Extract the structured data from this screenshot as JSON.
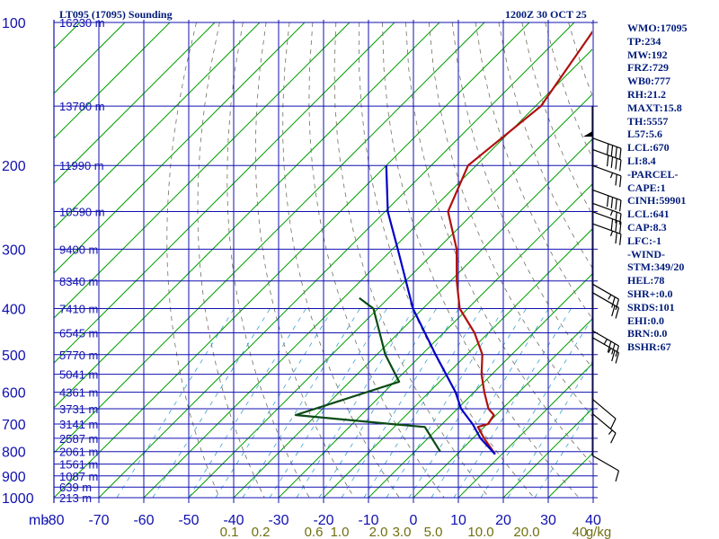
{
  "header": {
    "left": "LT095 (17095) Sounding",
    "right": "1200Z 30 OCT 25"
  },
  "side_params": [
    "WMO:17095",
    "TP:234",
    "MW:192",
    "FRZ:729",
    "WB0:777",
    "RH:21.2",
    "MAXT:15.8",
    "TH:5557",
    "L57:5.6",
    "LCL:670",
    "LI:8.4",
    "-PARCEL-",
    "CAPE:1",
    "CINH:59901",
    "LCL:641",
    "CAP:8.3",
    "LFC:-1",
    "-WIND-",
    "STM:349/20",
    "HEL:78",
    "SHR+:0.0",
    "SRDS:101",
    "EHI:0.0",
    "BRN:0.0",
    "BSHR:67"
  ],
  "colors": {
    "grid": "#1010b0",
    "isotherm": "#00a000",
    "dry_adiabat": "#707060",
    "mixing_ratio": "#3aa0d0",
    "temperature": "#b01010",
    "dewpoint": "#0a4a14",
    "parcel": "#0000c8",
    "axis_text": "#1010b0",
    "mixing_text": "#707010",
    "header_text": "#001b7a"
  },
  "chart_data": {
    "type": "line",
    "title": "LT095 (17095) Sounding",
    "xlabel": "",
    "ylabel": "mb",
    "pressure_unit": "mb",
    "mixing_ratio_unit": "g/kg",
    "pressure_levels": [
      100,
      200,
      300,
      400,
      500,
      600,
      700,
      800,
      900,
      1000
    ],
    "temperature_ticks": [
      -80,
      -70,
      -60,
      -50,
      -40,
      -30,
      -20,
      -10,
      0,
      10,
      20,
      30,
      40
    ],
    "temperature_tick_labels": [
      "-80",
      "-70",
      "-60",
      "-50",
      "-40",
      "-30",
      "-20",
      "-10",
      "0",
      "10",
      "20",
      "30",
      "40"
    ],
    "mixing_ratio_labels": [
      "0.1",
      "0.2",
      "0.6",
      "1.0",
      "2.0",
      "3.0",
      "5.0",
      "10.0",
      "20.0",
      "40",
      "g/kg"
    ],
    "height_labels": [
      {
        "p": 100,
        "label": "16230 m"
      },
      {
        "p": 150,
        "label": "13780 m"
      },
      {
        "p": 200,
        "label": "11990 m"
      },
      {
        "p": 250,
        "label": "10590 m"
      },
      {
        "p": 300,
        "label": "9400 m"
      },
      {
        "p": 350,
        "label": "8340 m"
      },
      {
        "p": 400,
        "label": "7410 m"
      },
      {
        "p": 450,
        "label": "6545 m"
      },
      {
        "p": 500,
        "label": "5770 m"
      },
      {
        "p": 550,
        "label": "5041 m"
      },
      {
        "p": 600,
        "label": "4361 m"
      },
      {
        "p": 650,
        "label": "3731 m"
      },
      {
        "p": 700,
        "label": "3141 m"
      },
      {
        "p": 750,
        "label": "2587 m"
      },
      {
        "p": 800,
        "label": "2061 m"
      },
      {
        "p": 850,
        "label": "1561 m"
      },
      {
        "p": 900,
        "label": "1087 m"
      },
      {
        "p": 950,
        "label": "639 m"
      },
      {
        "p": 1000,
        "label": "213 m"
      }
    ],
    "series": [
      {
        "name": "Temperature",
        "color": "#b01010",
        "points": [
          {
            "p": 100,
            "t": -64.5
          },
          {
            "p": 150,
            "t": -58.8
          },
          {
            "p": 200,
            "t": -61.8
          },
          {
            "p": 250,
            "t": -56.0
          },
          {
            "p": 300,
            "t": -45.7
          },
          {
            "p": 350,
            "t": -38.6
          },
          {
            "p": 400,
            "t": -31.8
          },
          {
            "p": 450,
            "t": -23.1
          },
          {
            "p": 500,
            "t": -16.5
          },
          {
            "p": 550,
            "t": -12.3
          },
          {
            "p": 600,
            "t": -7.7
          },
          {
            "p": 650,
            "t": -3.1
          },
          {
            "p": 670,
            "t": -0.5
          },
          {
            "p": 700,
            "t": 0.2
          },
          {
            "p": 710,
            "t": -1.4
          },
          {
            "p": 750,
            "t": 2.5
          },
          {
            "p": 810,
            "t": 8.5
          }
        ]
      },
      {
        "name": "Dewpoint",
        "color": "#0a4a14",
        "points": [
          {
            "p": 380,
            "t": -56.5
          },
          {
            "p": 400,
            "t": -51.0
          },
          {
            "p": 500,
            "t": -38.1
          },
          {
            "p": 570,
            "t": -29.0
          },
          {
            "p": 670,
            "t": -44.6
          },
          {
            "p": 700,
            "t": -21.0
          },
          {
            "p": 710,
            "t": -13.2
          },
          {
            "p": 800,
            "t": -4.3
          }
        ]
      },
      {
        "name": "Parcel",
        "color": "#0000c8",
        "points": [
          {
            "p": 200,
            "t": -80.0
          },
          {
            "p": 250,
            "t": -69.4
          },
          {
            "p": 300,
            "t": -58.8
          },
          {
            "p": 400,
            "t": -42.2
          },
          {
            "p": 500,
            "t": -26.9
          },
          {
            "p": 600,
            "t": -14.1
          },
          {
            "p": 650,
            "t": -9.2
          },
          {
            "p": 700,
            "t": -3.2
          },
          {
            "p": 750,
            "t": 1.7
          },
          {
            "p": 810,
            "t": 8.5
          }
        ]
      }
    ],
    "wind_barbs": [
      {
        "p": 150,
        "dir": 0,
        "speed": 50
      },
      {
        "p": 175,
        "dir": 290,
        "speed": 40
      },
      {
        "p": 185,
        "dir": 290,
        "speed": 40
      },
      {
        "p": 200,
        "dir": 290,
        "speed": 25
      },
      {
        "p": 225,
        "dir": 290,
        "speed": 40
      },
      {
        "p": 240,
        "dir": 290,
        "speed": 25
      },
      {
        "p": 250,
        "dir": 290,
        "speed": 30
      },
      {
        "p": 265,
        "dir": 290,
        "speed": 25
      },
      {
        "p": 355,
        "dir": 300,
        "speed": 25
      },
      {
        "p": 370,
        "dir": 300,
        "speed": 20
      },
      {
        "p": 445,
        "dir": 300,
        "speed": 35
      },
      {
        "p": 460,
        "dir": 300,
        "speed": 25
      },
      {
        "p": 620,
        "dir": 310,
        "speed": 10
      },
      {
        "p": 665,
        "dir": 310,
        "speed": 15
      },
      {
        "p": 815,
        "dir": 300,
        "speed": 10
      }
    ]
  }
}
